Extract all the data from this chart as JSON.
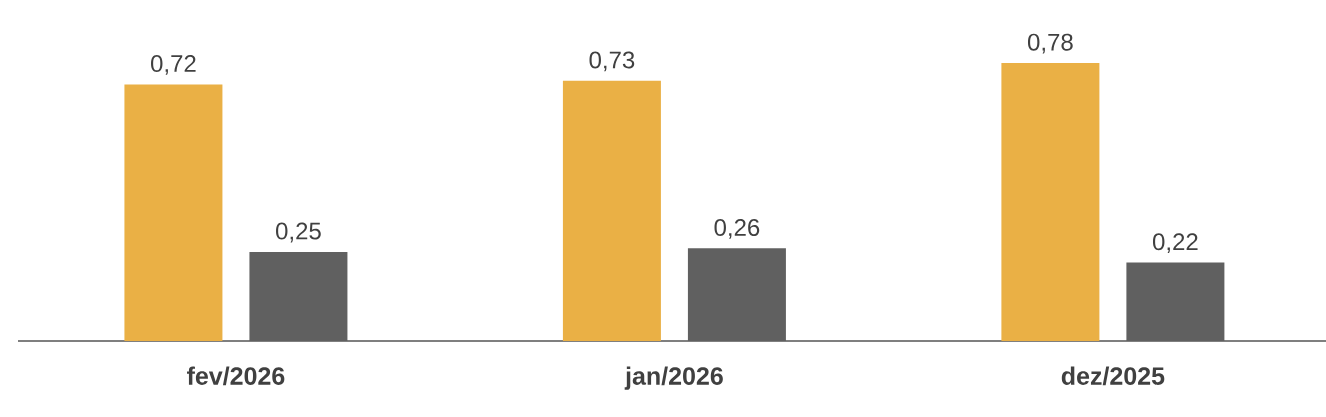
{
  "chart_data": {
    "type": "bar",
    "categories": [
      "fev/2026",
      "jan/2026",
      "dez/2025"
    ],
    "series": [
      {
        "color": "#eab045",
        "values": [
          0.72,
          0.73,
          0.78
        ],
        "value_labels": [
          "0,72",
          "0,73",
          "0,78"
        ]
      },
      {
        "color": "#606060",
        "values": [
          0.25,
          0.26,
          0.22
        ],
        "value_labels": [
          "0,25",
          "0,26",
          "0,22"
        ]
      }
    ]
  }
}
